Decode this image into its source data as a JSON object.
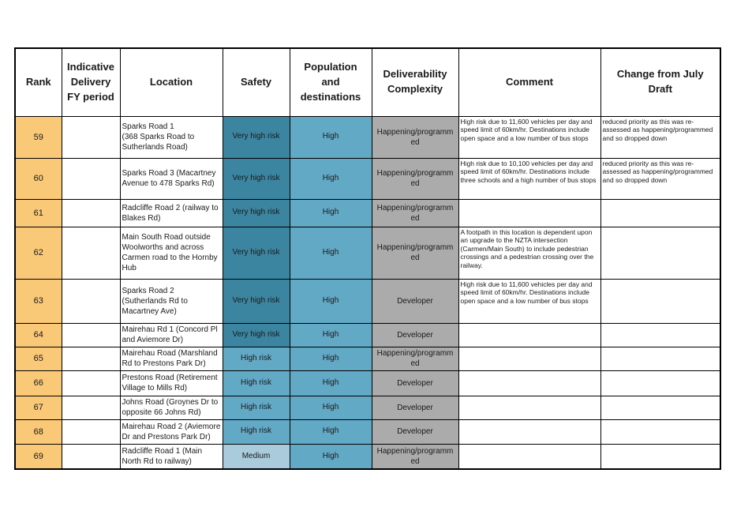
{
  "table": {
    "columns": [
      {
        "key": "rank",
        "label": "Rank"
      },
      {
        "key": "fy",
        "label": "Indicative\nDelivery\nFY period"
      },
      {
        "key": "location",
        "label": "Location"
      },
      {
        "key": "safety",
        "label": "Safety"
      },
      {
        "key": "population",
        "label": "Population\nand\ndestinations"
      },
      {
        "key": "deliverability",
        "label": "Deliverability\nComplexity"
      },
      {
        "key": "comment",
        "label": "Comment"
      },
      {
        "key": "change",
        "label": "Change from July\nDraft"
      }
    ],
    "rows": [
      {
        "rank": "59",
        "fy": "",
        "location": "Sparks Road 1\n(368 Sparks Road to Sutherlands Road)",
        "safety": "Very high risk",
        "safety_level": "very_high",
        "population": "High",
        "population_level": "high",
        "deliverability": "Happening/programmed",
        "comment": "High risk due to 11,600 vehicles per day and speed limit of 60km/hr. Destinations include open space and a low number of bus stops",
        "change": "reduced priority as this was re-assessed as happening/programmed and so dropped down"
      },
      {
        "rank": "60",
        "fy": "",
        "location": "Sparks Road 3 (Macartney Avenue to 478 Sparks Rd)",
        "safety": "Very high risk",
        "safety_level": "very_high",
        "population": "High",
        "population_level": "high",
        "deliverability": "Happening/programmed",
        "comment": "High risk due to 10,100 vehicles per day and speed limit of 60km/hr. Destinations include three schools and a high number of bus stops",
        "change": "reduced priority as this was re-assessed as happening/programmed and so dropped down"
      },
      {
        "rank": "61",
        "fy": "",
        "location": "Radcliffe Road 2 (railway to Blakes Rd)",
        "safety": "Very high risk",
        "safety_level": "very_high",
        "population": "High",
        "population_level": "high",
        "deliverability": "Happening/programmed",
        "comment": "",
        "change": ""
      },
      {
        "rank": "62",
        "fy": "",
        "location": "Main South Road outside Woolworths and across Carmen road to the Hornby Hub",
        "safety": "Very high risk",
        "safety_level": "very_high",
        "population": "High",
        "population_level": "high",
        "deliverability": "Happening/programmed",
        "comment": "A footpath in this location is dependent upon an upgrade to the NZTA intersection (Carmen/Main South) to include pedestrian crossings and a pedestrian crossing over the railway.",
        "change": ""
      },
      {
        "rank": "63",
        "fy": "",
        "location": "Sparks Road 2 (Sutherlands Rd to Macartney Ave)",
        "safety": "Very high risk",
        "safety_level": "very_high",
        "population": "High",
        "population_level": "high",
        "deliverability": "Developer",
        "comment": "High risk due to 11,600 vehicles per day and speed limit of 60km/hr. Destinations include open space and a low number of bus stops",
        "change": ""
      },
      {
        "rank": "64",
        "fy": "",
        "location": "Mairehau Rd 1 (Concord Pl and Aviemore Dr)",
        "safety": "Very high risk",
        "safety_level": "very_high",
        "population": "High",
        "population_level": "high",
        "deliverability": "Developer",
        "comment": "",
        "change": ""
      },
      {
        "rank": "65",
        "fy": "",
        "location": "Mairehau Road (Marshland Rd to Prestons Park Dr)",
        "safety": "High risk",
        "safety_level": "high",
        "population": "High",
        "population_level": "high",
        "deliverability": "Happening/programmed",
        "comment": "",
        "change": ""
      },
      {
        "rank": "66",
        "fy": "",
        "location": "Prestons Road (Retirement Village to Mills Rd)",
        "safety": "High risk",
        "safety_level": "high",
        "population": "High",
        "population_level": "high",
        "deliverability": "Developer",
        "comment": "",
        "change": ""
      },
      {
        "rank": "67",
        "fy": "",
        "location": "Johns Road (Groynes Dr to opposite 66 Johns Rd)",
        "safety": "High risk",
        "safety_level": "high",
        "population": "High",
        "population_level": "high",
        "deliverability": "Developer",
        "comment": "",
        "change": ""
      },
      {
        "rank": "68",
        "fy": "",
        "location": "Mairehau Road 2 (Aviemore Dr and Prestons Park Dr)",
        "safety": "High risk",
        "safety_level": "high",
        "population": "High",
        "population_level": "high",
        "deliverability": "Developer",
        "comment": "",
        "change": ""
      },
      {
        "rank": "69",
        "fy": "",
        "location": "Radcliffe Road 1 (Main North Rd to railway)",
        "safety": "Medium",
        "safety_level": "medium",
        "population": "High",
        "population_level": "high",
        "deliverability": "Happening/programmed",
        "comment": "",
        "change": ""
      }
    ]
  },
  "colors": {
    "rank_fill": "#FAC978",
    "safety_very_high": "#3C85A0",
    "safety_high": "#62A9C6",
    "safety_medium": "#A9CBDC",
    "population_high": "#62A9C6",
    "deliverability_fill": "#ABABAB",
    "border": "#000000",
    "text": "#1A1A1A",
    "page_background": "#FFFFFF"
  }
}
